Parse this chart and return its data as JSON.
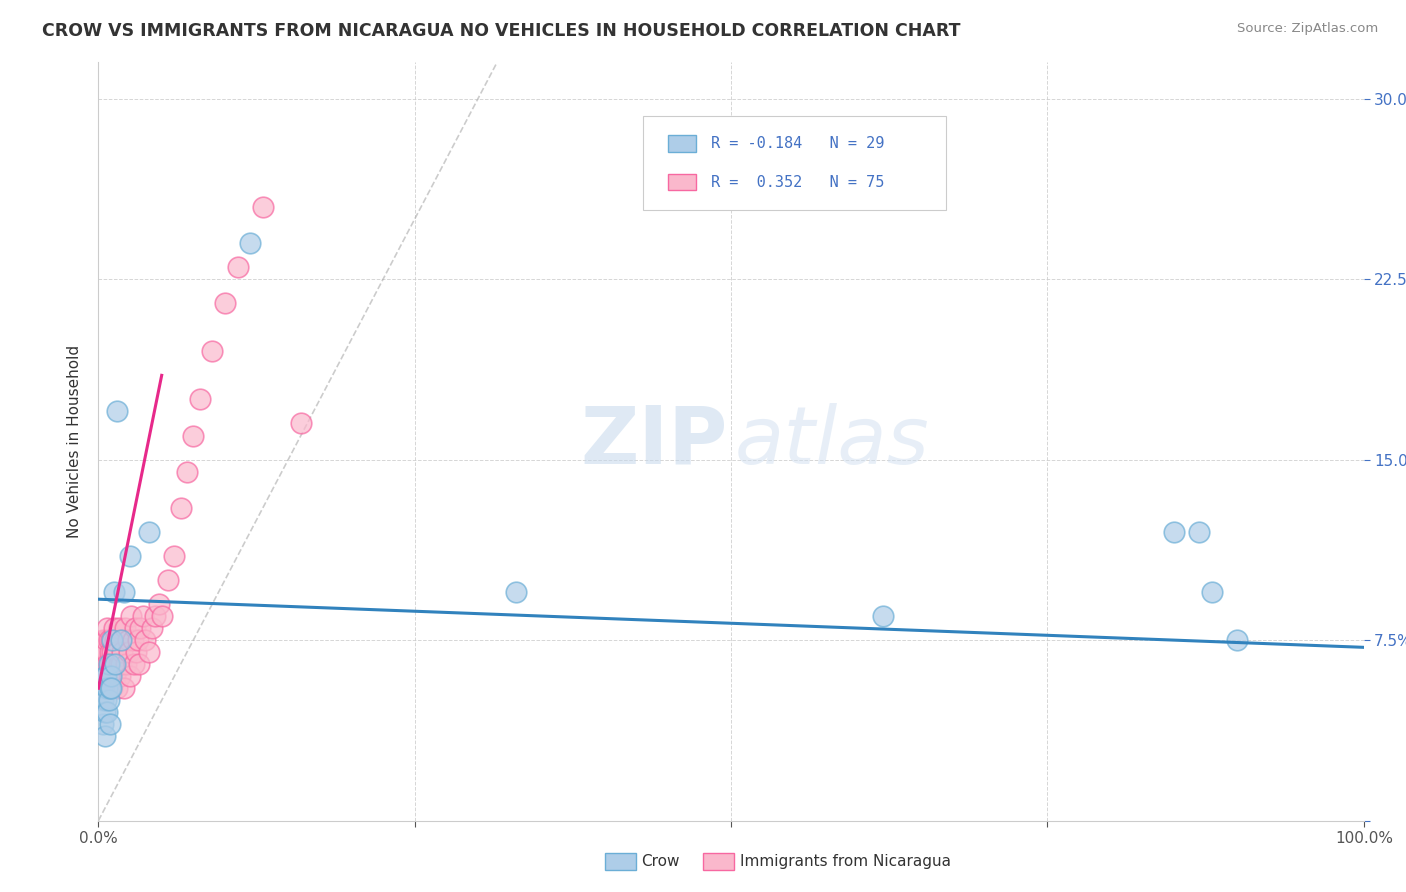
{
  "title": "CROW VS IMMIGRANTS FROM NICARAGUA NO VEHICLES IN HOUSEHOLD CORRELATION CHART",
  "source": "Source: ZipAtlas.com",
  "ylabel": "No Vehicles in Household",
  "xlim": [
    0.0,
    1.0
  ],
  "ylim": [
    0.0,
    0.315
  ],
  "xticks": [
    0.0,
    0.25,
    0.5,
    0.75,
    1.0
  ],
  "xticklabels": [
    "0.0%",
    "",
    "",
    "",
    "100.0%"
  ],
  "yticks": [
    0.0,
    0.075,
    0.15,
    0.225,
    0.3
  ],
  "yticklabels": [
    "",
    "7.5%",
    "15.0%",
    "22.5%",
    "30.0%"
  ],
  "crow_color": "#6baed6",
  "nic_color": "#f768a1",
  "crow_fill": "#aecde8",
  "nic_fill": "#fab8cc",
  "blue_line_color": "#3182bd",
  "pink_line_color": "#e7298a",
  "grid_color": "#cccccc",
  "background_color": "#ffffff",
  "crow_x": [
    0.003,
    0.004,
    0.004,
    0.005,
    0.005,
    0.005,
    0.006,
    0.006,
    0.007,
    0.007,
    0.008,
    0.008,
    0.009,
    0.009,
    0.01,
    0.01,
    0.011,
    0.012,
    0.013,
    0.015,
    0.018,
    0.02,
    0.025,
    0.04,
    0.12,
    0.33,
    0.62,
    0.85,
    0.87,
    0.88,
    0.9
  ],
  "crow_y": [
    0.055,
    0.04,
    0.05,
    0.06,
    0.045,
    0.035,
    0.05,
    0.06,
    0.045,
    0.055,
    0.05,
    0.065,
    0.055,
    0.04,
    0.06,
    0.055,
    0.075,
    0.095,
    0.065,
    0.17,
    0.075,
    0.095,
    0.11,
    0.12,
    0.24,
    0.095,
    0.085,
    0.12,
    0.12,
    0.095,
    0.075
  ],
  "nic_x": [
    0.001,
    0.002,
    0.002,
    0.003,
    0.003,
    0.004,
    0.004,
    0.004,
    0.005,
    0.005,
    0.005,
    0.005,
    0.006,
    0.006,
    0.006,
    0.006,
    0.007,
    0.007,
    0.007,
    0.008,
    0.008,
    0.008,
    0.009,
    0.009,
    0.009,
    0.01,
    0.01,
    0.01,
    0.011,
    0.011,
    0.012,
    0.012,
    0.013,
    0.013,
    0.014,
    0.015,
    0.015,
    0.016,
    0.016,
    0.017,
    0.018,
    0.018,
    0.019,
    0.02,
    0.021,
    0.022,
    0.023,
    0.024,
    0.025,
    0.026,
    0.027,
    0.028,
    0.029,
    0.03,
    0.031,
    0.032,
    0.033,
    0.035,
    0.037,
    0.04,
    0.042,
    0.045,
    0.048,
    0.05,
    0.055,
    0.06,
    0.065,
    0.07,
    0.075,
    0.08,
    0.09,
    0.1,
    0.11,
    0.13,
    0.16
  ],
  "nic_y": [
    0.06,
    0.065,
    0.055,
    0.07,
    0.06,
    0.055,
    0.065,
    0.075,
    0.06,
    0.07,
    0.055,
    0.065,
    0.06,
    0.07,
    0.055,
    0.075,
    0.06,
    0.065,
    0.08,
    0.055,
    0.065,
    0.075,
    0.06,
    0.07,
    0.055,
    0.065,
    0.075,
    0.06,
    0.07,
    0.055,
    0.065,
    0.08,
    0.06,
    0.075,
    0.07,
    0.055,
    0.07,
    0.065,
    0.08,
    0.06,
    0.075,
    0.065,
    0.07,
    0.055,
    0.08,
    0.065,
    0.075,
    0.07,
    0.06,
    0.085,
    0.075,
    0.065,
    0.08,
    0.07,
    0.075,
    0.065,
    0.08,
    0.085,
    0.075,
    0.07,
    0.08,
    0.085,
    0.09,
    0.085,
    0.1,
    0.11,
    0.13,
    0.145,
    0.16,
    0.175,
    0.195,
    0.215,
    0.23,
    0.255,
    0.165
  ],
  "blue_line_x0": 0.0,
  "blue_line_y0": 0.092,
  "blue_line_x1": 1.0,
  "blue_line_y1": 0.072,
  "pink_line_x0": 0.0,
  "pink_line_y0": 0.055,
  "pink_line_x1": 0.05,
  "pink_line_y1": 0.185
}
